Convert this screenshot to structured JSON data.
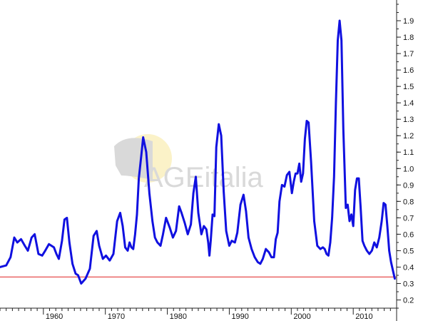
{
  "colors": {
    "series": "#1010e0",
    "reference_line": "#e02020",
    "axis": "#222222",
    "watermark": "#d9d9d9",
    "watermark_sun": "#fbf2c8"
  },
  "watermark": {
    "text": "AGEitalia"
  },
  "chart_data": {
    "type": "line",
    "title": "",
    "xlabel": "",
    "ylabel": "",
    "xlim": [
      1953,
      2017
    ],
    "ylim": [
      0.15,
      2.0
    ],
    "y_axis_side": "right",
    "grid": false,
    "legend": "none",
    "x_ticks": [
      1960,
      1970,
      1980,
      1990,
      2000,
      2010
    ],
    "y_ticks": [
      0.2,
      0.3,
      0.4,
      0.5,
      0.6,
      0.7,
      0.8,
      0.9,
      1.0,
      1.1,
      1.2,
      1.3,
      1.4,
      1.5,
      1.6,
      1.7,
      1.8,
      1.9
    ],
    "y_tick_labels": [
      "0.2",
      "0.3",
      "0.4",
      "0.5",
      "0.6",
      "0.7",
      "0.8",
      "0.9",
      "1.0",
      "1.1",
      "1.2",
      "1.3",
      "1.4",
      "1.5",
      "1.6",
      "1.7",
      "1.8",
      "1.9"
    ],
    "reference_line": {
      "y": 0.34
    },
    "series": [
      {
        "x": [
          1953.0,
          1954.0,
          1954.7,
          1955.3,
          1955.8,
          1956.4,
          1957.0,
          1957.5,
          1958.1,
          1958.6,
          1959.2,
          1959.8,
          1960.3,
          1960.9,
          1961.3,
          1961.7,
          1962.1,
          1962.5,
          1963.0,
          1963.4,
          1963.8,
          1964.2,
          1964.7,
          1965.2,
          1965.6,
          1966.1,
          1966.8,
          1967.5,
          1968.1,
          1968.6,
          1969.0,
          1969.6,
          1970.1,
          1970.7,
          1971.3,
          1971.9,
          1972.4,
          1972.8,
          1973.2,
          1973.6,
          1973.9,
          1974.2,
          1974.5,
          1974.8,
          1975.1,
          1975.4,
          1975.8,
          1976.1,
          1976.6,
          1977.1,
          1977.6,
          1978.0,
          1978.4,
          1978.9,
          1979.3,
          1979.8,
          1980.4,
          1980.9,
          1981.4,
          1981.9,
          1982.3,
          1982.8,
          1983.3,
          1983.8,
          1984.2,
          1984.6,
          1985.0,
          1985.5,
          1985.9,
          1986.3,
          1986.6,
          1986.8,
          1987.0,
          1987.3,
          1987.6,
          1987.9,
          1988.3,
          1988.7,
          1989.1,
          1989.5,
          1990.0,
          1990.4,
          1990.9,
          1991.3,
          1991.8,
          1992.3,
          1992.7,
          1993.1,
          1993.6,
          1994.1,
          1994.6,
          1995.0,
          1995.4,
          1995.9,
          1996.4,
          1996.8,
          1997.2,
          1997.5,
          1997.8,
          1998.1,
          1998.5,
          1998.9,
          1999.3,
          1999.7,
          2000.1,
          2000.4,
          2000.7,
          2001.0,
          2001.3,
          2001.6,
          2001.9,
          2002.2,
          2002.5,
          2002.8,
          2003.2,
          2003.7,
          2004.2,
          2004.7,
          2005.1,
          2005.4,
          2005.7,
          2006.0,
          2006.3,
          2006.6,
          2006.9,
          2007.2,
          2007.5,
          2007.8,
          2008.1,
          2008.4,
          2008.8,
          2009.1,
          2009.4,
          2009.7,
          2010.0,
          2010.3,
          2010.6,
          2010.9,
          2011.2,
          2011.5,
          2011.8,
          2012.2,
          2012.6,
          2013.0,
          2013.4,
          2013.8,
          2014.2,
          2014.6,
          2014.9,
          2015.2,
          2015.5,
          2015.8,
          2016.1,
          2016.4,
          2016.7
        ],
        "values": [
          0.4,
          0.41,
          0.46,
          0.58,
          0.55,
          0.57,
          0.53,
          0.5,
          0.58,
          0.6,
          0.48,
          0.47,
          0.5,
          0.54,
          0.53,
          0.52,
          0.48,
          0.45,
          0.56,
          0.69,
          0.7,
          0.55,
          0.42,
          0.36,
          0.35,
          0.3,
          0.33,
          0.39,
          0.59,
          0.62,
          0.53,
          0.45,
          0.47,
          0.44,
          0.48,
          0.68,
          0.73,
          0.65,
          0.52,
          0.5,
          0.55,
          0.52,
          0.51,
          0.6,
          0.72,
          0.94,
          1.08,
          1.19,
          1.1,
          0.85,
          0.68,
          0.58,
          0.55,
          0.53,
          0.6,
          0.7,
          0.64,
          0.58,
          0.62,
          0.77,
          0.73,
          0.67,
          0.6,
          0.66,
          0.85,
          0.95,
          0.73,
          0.6,
          0.65,
          0.63,
          0.55,
          0.47,
          0.56,
          0.72,
          0.71,
          1.13,
          1.27,
          1.2,
          0.86,
          0.62,
          0.53,
          0.56,
          0.55,
          0.61,
          0.78,
          0.84,
          0.74,
          0.58,
          0.51,
          0.46,
          0.43,
          0.42,
          0.45,
          0.51,
          0.49,
          0.46,
          0.46,
          0.57,
          0.61,
          0.8,
          0.9,
          0.89,
          0.96,
          0.98,
          0.85,
          0.92,
          0.97,
          0.97,
          1.03,
          0.92,
          0.97,
          1.18,
          1.29,
          1.28,
          1.04,
          0.68,
          0.53,
          0.51,
          0.52,
          0.51,
          0.48,
          0.47,
          0.55,
          0.7,
          0.95,
          1.4,
          1.78,
          1.9,
          1.78,
          1.24,
          0.76,
          0.78,
          0.68,
          0.72,
          0.65,
          0.87,
          0.94,
          0.94,
          0.76,
          0.56,
          0.53,
          0.5,
          0.48,
          0.5,
          0.55,
          0.52,
          0.58,
          0.68,
          0.79,
          0.78,
          0.65,
          0.5,
          0.43,
          0.38,
          0.33
        ]
      }
    ]
  }
}
